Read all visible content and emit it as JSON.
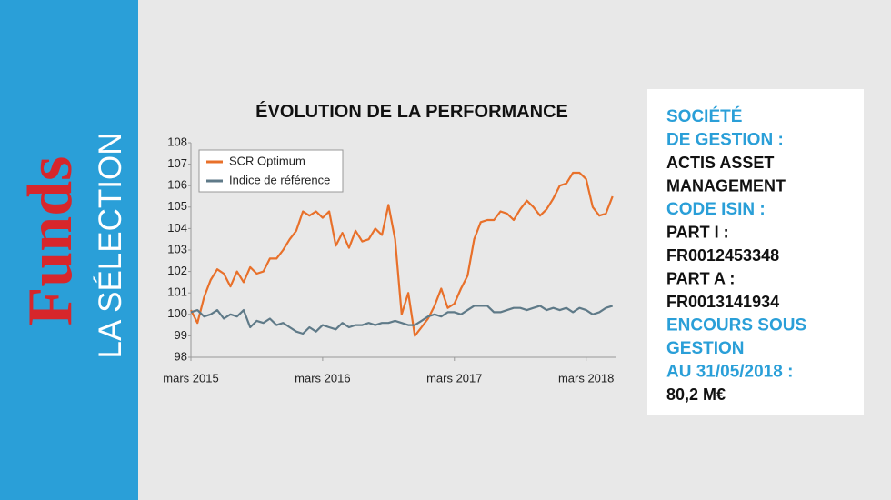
{
  "brand": {
    "title": "Funds",
    "subtitle": "LA SÉLECTION"
  },
  "chart_data": {
    "type": "line",
    "title": "ÉVOLUTION DE LA PERFORMANCE",
    "x": [
      2015.17,
      2015.22,
      2015.27,
      2015.32,
      2015.37,
      2015.42,
      2015.47,
      2015.52,
      2015.57,
      2015.62,
      2015.67,
      2015.72,
      2015.77,
      2015.82,
      2015.87,
      2015.92,
      2015.97,
      2016.02,
      2016.07,
      2016.12,
      2016.17,
      2016.22,
      2016.27,
      2016.32,
      2016.37,
      2016.42,
      2016.47,
      2016.52,
      2016.57,
      2016.62,
      2016.67,
      2016.72,
      2016.77,
      2016.82,
      2016.87,
      2016.92,
      2016.97,
      2017.02,
      2017.07,
      2017.12,
      2017.17,
      2017.22,
      2017.27,
      2017.32,
      2017.37,
      2017.42,
      2017.47,
      2017.52,
      2017.57,
      2017.62,
      2017.67,
      2017.72,
      2017.77,
      2017.82,
      2017.87,
      2017.92,
      2017.97,
      2018.02,
      2018.07,
      2018.12,
      2018.17,
      2018.22,
      2018.27,
      2018.32,
      2018.37
    ],
    "series": [
      {
        "name": "SCR Optimum",
        "color": "#e8702a",
        "values": [
          100.2,
          99.6,
          100.8,
          101.6,
          102.1,
          101.9,
          101.3,
          102,
          101.5,
          102.2,
          101.9,
          102,
          102.6,
          102.6,
          103,
          103.5,
          103.9,
          104.8,
          104.6,
          104.8,
          104.5,
          104.8,
          103.2,
          103.8,
          103.1,
          103.9,
          103.4,
          103.5,
          104,
          103.7,
          105.1,
          103.5,
          100,
          101,
          99,
          99.4,
          99.8,
          100.4,
          101.2,
          100.3,
          100.5,
          101.2,
          101.8,
          103.5,
          104.3,
          104.4,
          104.4,
          104.8,
          104.7,
          104.4,
          104.9,
          105.3,
          105,
          104.6,
          104.9,
          105.4,
          106,
          106.1,
          106.6,
          106.6,
          106.3,
          105,
          104.6,
          104.7,
          105.5
        ]
      },
      {
        "name": "Indice de référence",
        "color": "#5f7a88",
        "values": [
          100.1,
          100.2,
          99.9,
          100,
          100.2,
          99.8,
          100,
          99.9,
          100.2,
          99.4,
          99.7,
          99.6,
          99.8,
          99.5,
          99.6,
          99.4,
          99.2,
          99.1,
          99.4,
          99.2,
          99.5,
          99.4,
          99.3,
          99.6,
          99.4,
          99.5,
          99.5,
          99.6,
          99.5,
          99.6,
          99.6,
          99.7,
          99.6,
          99.5,
          99.5,
          99.7,
          99.9,
          100,
          99.9,
          100.1,
          100.1,
          100,
          100.2,
          100.4,
          100.4,
          100.4,
          100.1,
          100.1,
          100.2,
          100.3,
          100.3,
          100.2,
          100.3,
          100.4,
          100.2,
          100.3,
          100.2,
          100.3,
          100.1,
          100.3,
          100.2,
          100,
          100.1,
          100.3,
          100.4
        ]
      }
    ],
    "xlim": [
      2015.17,
      2018.4
    ],
    "xticks": [
      {
        "value": 2015.17,
        "label": "mars 2015"
      },
      {
        "value": 2016.17,
        "label": "mars 2016"
      },
      {
        "value": 2017.17,
        "label": "mars 2017"
      },
      {
        "value": 2018.17,
        "label": "mars 2018"
      }
    ],
    "ylim": [
      98,
      108
    ],
    "yticks": [
      98,
      99,
      100,
      101,
      102,
      103,
      104,
      105,
      106,
      107,
      108
    ],
    "grid": false,
    "legend": "upper left"
  },
  "info": {
    "sections": [
      {
        "label": [
          "SOCIÉTÉ",
          "DE GESTION :"
        ],
        "value": [
          "ACTIS ASSET",
          "MANAGEMENT"
        ]
      },
      {
        "label": [
          "CODE ISIN :"
        ],
        "value": [
          "PART I :",
          "FR0012453348",
          "PART A :",
          "FR0013141934"
        ]
      },
      {
        "label": [
          "ENCOURS SOUS",
          "GESTION",
          "AU 31/05/2018 :"
        ],
        "value": [
          "80,2 M€"
        ]
      }
    ]
  }
}
